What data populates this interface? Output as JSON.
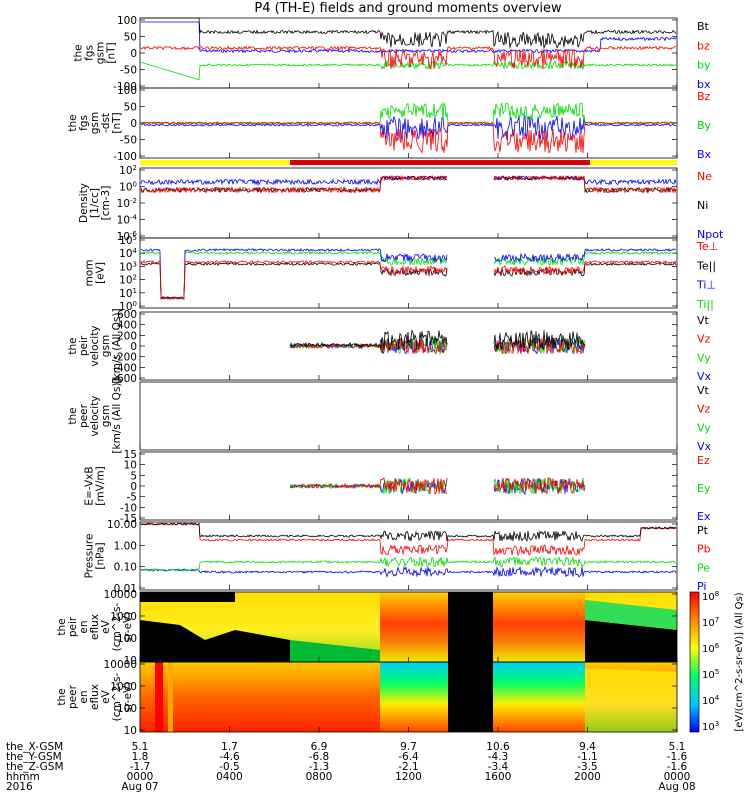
{
  "title": "P4 (TH-E) fields and ground moments overview",
  "colors": {
    "black": "#000000",
    "red": "#ff0000",
    "green": "#00dd00",
    "blue": "#0000ff",
    "yellow": "#ffff00",
    "bar_red": "#dd0000"
  },
  "chart_data": [
    {
      "type": "line",
      "panel": "fgs_gsm",
      "ylabel": [
        "the",
        "fgs",
        "gsm",
        "[nT]"
      ],
      "yticks": [
        "100",
        "50",
        "0",
        "-50",
        "-100"
      ],
      "ylim": [
        -100,
        100
      ],
      "series": [
        {
          "name": "Bt",
          "color": "black"
        },
        {
          "name": "bz",
          "color": "red"
        },
        {
          "name": "by",
          "color": "green"
        },
        {
          "name": "bx",
          "color": "blue"
        }
      ]
    },
    {
      "type": "line",
      "panel": "fgs_gsm_dst",
      "ylabel": [
        "the",
        "fgs",
        "gsm",
        "-dst",
        "[nT]"
      ],
      "yticks": [
        "100",
        "50",
        "0",
        "-50",
        "-100"
      ],
      "ylim": [
        -120,
        100
      ],
      "series": [
        {
          "name": "Bz",
          "color": "red"
        },
        {
          "name": "By",
          "color": "green"
        },
        {
          "name": "Bx",
          "color": "blue"
        }
      ]
    },
    {
      "type": "line",
      "panel": "density",
      "ylabel": [
        "Density",
        "[1/cc]",
        "[cm-3]"
      ],
      "yticks": [
        "10^2",
        "10^0",
        "10^-2",
        "10^-4",
        "10^-6"
      ],
      "ylim": [
        -6,
        2
      ],
      "yscale": "log",
      "series": [
        {
          "name": "Ne",
          "color": "red"
        },
        {
          "name": "Ni",
          "color": "black"
        },
        {
          "name": "Npot",
          "color": "blue"
        }
      ]
    },
    {
      "type": "line",
      "panel": "temperature",
      "ylabel": [
        "mom",
        "[eV]"
      ],
      "yticks": [
        "10^5",
        "10^4",
        "10^3",
        "10^2",
        "10^1",
        "10^0"
      ],
      "ylim": [
        0,
        5
      ],
      "yscale": "log",
      "series": [
        {
          "name": "Te⊥",
          "color": "red"
        },
        {
          "name": "Te||",
          "color": "black"
        },
        {
          "name": "Ti⊥",
          "color": "blue"
        },
        {
          "name": "Ti||",
          "color": "green"
        }
      ]
    },
    {
      "type": "line",
      "panel": "peir_velocity",
      "ylabel": [
        "the",
        "peir",
        "velocity",
        "gsm",
        "[km/s (All Qs)]"
      ],
      "yticks": [
        "600",
        "400",
        "200",
        "0",
        "-200",
        "-400",
        "-600"
      ],
      "ylim": [
        -600,
        600
      ],
      "series": [
        {
          "name": "Vt",
          "color": "black"
        },
        {
          "name": "Vz",
          "color": "red"
        },
        {
          "name": "Vy",
          "color": "green"
        },
        {
          "name": "Vx",
          "color": "blue"
        }
      ]
    },
    {
      "type": "line",
      "panel": "peer_velocity",
      "ylabel": [
        "the",
        "peer",
        "velocity",
        "gsm",
        "[km/s (All Qs)]"
      ],
      "yticks": [],
      "ylim": [
        -600,
        600
      ],
      "series": [
        {
          "name": "Vt",
          "color": "black"
        },
        {
          "name": "Vz",
          "color": "red"
        },
        {
          "name": "Vy",
          "color": "green"
        },
        {
          "name": "Vx",
          "color": "blue"
        }
      ]
    },
    {
      "type": "line",
      "panel": "efield",
      "ylabel": [
        "E=-VxB",
        "[mV/m]"
      ],
      "yticks": [
        "15",
        "10",
        "5",
        "0",
        "-5",
        "-10",
        "-15"
      ],
      "ylim": [
        -15,
        15
      ],
      "series": [
        {
          "name": "Ez",
          "color": "red"
        },
        {
          "name": "Ey",
          "color": "green"
        },
        {
          "name": "Ex",
          "color": "blue"
        }
      ]
    },
    {
      "type": "line",
      "panel": "pressure",
      "ylabel": [
        "Pressure",
        "[nPa]"
      ],
      "yticks": [
        "10.00",
        "1.00",
        "0.10",
        "0.01"
      ],
      "ylim": [
        -2.5,
        1.5
      ],
      "yscale": "log",
      "series": [
        {
          "name": "Pt",
          "color": "black"
        },
        {
          "name": "Pb",
          "color": "red"
        },
        {
          "name": "Pe",
          "color": "green"
        },
        {
          "name": "Pi",
          "color": "blue"
        }
      ]
    },
    {
      "type": "heatmap",
      "panel": "peir_en_eflux",
      "ylabel": [
        "the",
        "peir",
        "en",
        "eflux",
        "eV",
        "(cm^2-s-",
        "sr-eV)"
      ],
      "yticks": [
        "10000",
        "1000",
        "100",
        "10"
      ],
      "ylim": [
        5,
        20000
      ],
      "yscale": "log"
    },
    {
      "type": "heatmap",
      "panel": "peer_en_eflux",
      "ylabel": [
        "the",
        "peer",
        "en",
        "eflux",
        "eV",
        "(cm^2-s-",
        "sr-eV)"
      ],
      "yticks": [
        "10000",
        "1000",
        "100",
        "10"
      ],
      "ylim": [
        5,
        20000
      ],
      "yscale": "log"
    }
  ],
  "colorbar": {
    "ticks": [
      "10^8",
      "10^7",
      "10^6",
      "10^5",
      "10^4",
      "10^3"
    ],
    "label": "[eV/(cm^2-s-sr-eV)] (All Qs)"
  },
  "footer": {
    "row_labels": [
      "the_X-GSM",
      "the_Y-GSM",
      "the_Z-GSM",
      "hhmm",
      "2016"
    ],
    "columns": [
      [
        "5.1",
        "1.8",
        "-1.7",
        "0000",
        "Aug 07"
      ],
      [
        "1.7",
        "-4.6",
        "-0.5",
        "0400",
        ""
      ],
      [
        "6.9",
        "-6.8",
        "-1.3",
        "0800",
        ""
      ],
      [
        "9.7",
        "-6.4",
        "-2.1",
        "1200",
        ""
      ],
      [
        "10.6",
        "-4.3",
        "-3.4",
        "1600",
        ""
      ],
      [
        "9.4",
        "-1.1",
        "-3.5",
        "2000",
        ""
      ],
      [
        "5.1",
        "-1.6",
        "-1.6",
        "0000",
        "Aug 08"
      ]
    ]
  }
}
